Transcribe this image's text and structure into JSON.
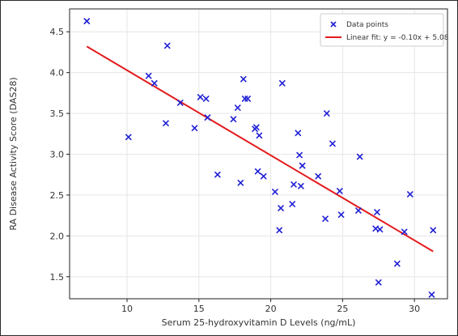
{
  "chart_data": {
    "type": "scatter",
    "title": "",
    "xlabel": "Serum 25-hydroxyvitamin D Levels (ng/mL)",
    "ylabel": "RA Disease Activity Score (DAS28)",
    "xlim": [
      6.0,
      32.3
    ],
    "ylim": [
      1.23,
      4.78
    ],
    "xticks": [
      10,
      15,
      20,
      25,
      30
    ],
    "yticks": [
      1.5,
      2.0,
      2.5,
      3.0,
      3.5,
      4.0,
      4.5
    ],
    "grid": true,
    "legend_position": "top-right",
    "series": [
      {
        "name": "Data points",
        "kind": "scatter",
        "marker": "x",
        "color": "#1f1fd6",
        "x": [
          7.2,
          10.1,
          11.5,
          11.9,
          12.7,
          12.8,
          13.7,
          14.7,
          15.1,
          15.5,
          15.6,
          16.3,
          17.4,
          17.7,
          17.9,
          18.1,
          18.2,
          18.4,
          18.9,
          19.0,
          19.1,
          19.2,
          19.5,
          20.3,
          20.6,
          20.7,
          20.8,
          21.5,
          21.6,
          21.9,
          22.0,
          22.1,
          22.2,
          23.3,
          23.8,
          23.9,
          24.3,
          24.8,
          24.9,
          26.1,
          26.2,
          27.3,
          27.4,
          27.5,
          27.6,
          28.8,
          29.3,
          29.7,
          31.2,
          31.3
        ],
        "y": [
          4.63,
          3.21,
          3.96,
          3.87,
          3.38,
          4.33,
          3.63,
          3.32,
          3.7,
          3.68,
          3.45,
          2.75,
          3.43,
          3.57,
          2.65,
          3.92,
          3.68,
          3.68,
          3.31,
          3.33,
          2.79,
          3.23,
          2.73,
          2.54,
          2.07,
          2.34,
          3.87,
          2.39,
          2.63,
          3.26,
          2.99,
          2.61,
          2.86,
          2.73,
          2.21,
          3.5,
          3.13,
          2.55,
          2.26,
          2.31,
          2.97,
          2.09,
          2.29,
          1.43,
          2.08,
          1.66,
          2.05,
          2.51,
          1.28,
          2.07
        ]
      },
      {
        "name": "Linear fit: y = -0.10x + 5.08",
        "kind": "line",
        "color": "#e31a1c",
        "x": [
          7.2,
          31.3
        ],
        "y": [
          4.32,
          1.81
        ]
      }
    ]
  }
}
